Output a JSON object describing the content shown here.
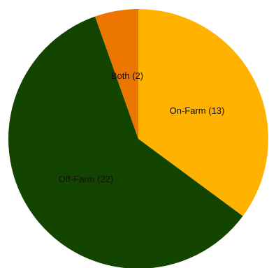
{
  "chart_data": {
    "type": "pie",
    "slices": [
      {
        "label": "On-Farm (13)",
        "category": "On-Farm",
        "value": 13,
        "color": "#ffb300"
      },
      {
        "label": "Off-Farm (22)",
        "category": "Off-Farm",
        "value": 22,
        "color": "#134400"
      },
      {
        "label": "Both (2)",
        "category": "Both",
        "value": 2,
        "color": "#ec7600"
      }
    ],
    "start": "top",
    "direction": "clockwise"
  }
}
